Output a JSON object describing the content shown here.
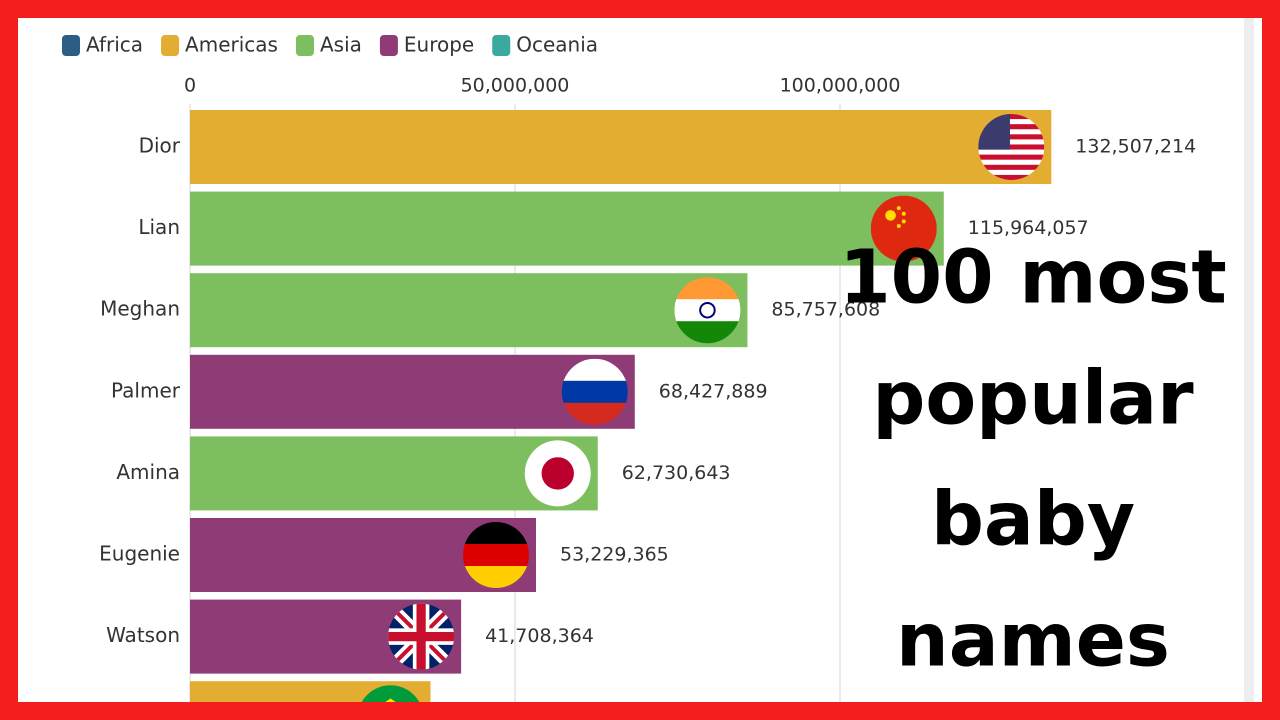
{
  "chart_data": {
    "type": "barh",
    "legend": [
      {
        "name": "Africa",
        "color": "#2b5d85"
      },
      {
        "name": "Americas",
        "color": "#e3ad31"
      },
      {
        "name": "Asia",
        "color": "#7dbe5e"
      },
      {
        "name": "Europe",
        "color": "#8e3b76"
      },
      {
        "name": "Oceania",
        "color": "#3aa99f"
      }
    ],
    "categories": [
      "Dior",
      "Lian",
      "Meghan",
      "Palmer",
      "Amina",
      "Eugenie",
      "Watson",
      null
    ],
    "values": [
      132507214,
      115964057,
      85757608,
      68427889,
      62730643,
      53229365,
      41708364,
      37000000
    ],
    "value_labels": [
      "132,507,214",
      "115,964,057",
      "85,757,608",
      "68,427,889",
      "62,730,643",
      "53,229,365",
      "41,708,364",
      null
    ],
    "colors": [
      "#e3ad31",
      "#7dbe5e",
      "#7dbe5e",
      "#8e3b76",
      "#7dbe5e",
      "#8e3b76",
      "#8e3b76",
      "#e3ad31"
    ],
    "xlim": [
      0,
      160000000
    ],
    "xticks": [
      0,
      {
        "value": 50000000,
        "label": "50,000,000"
      },
      {
        "value": 100000000,
        "label": "100,000,000"
      }
    ],
    "grid": true,
    "annotation": [
      "100 most",
      "popular",
      "baby",
      "names"
    ]
  }
}
